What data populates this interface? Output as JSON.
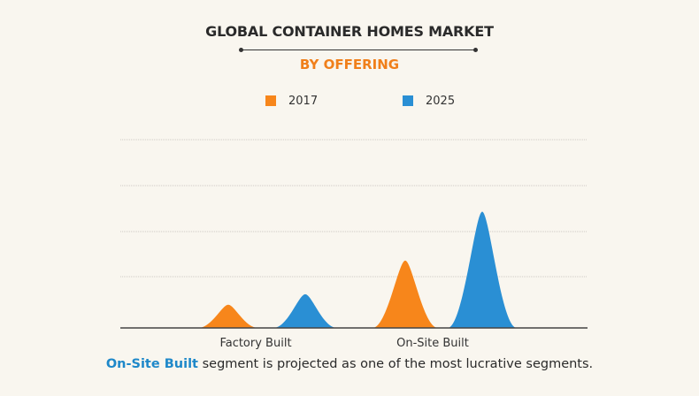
{
  "header": {
    "title": "GLOBAL CONTAINER HOMES MARKET",
    "subtitle": "BY OFFERING"
  },
  "colors": {
    "accent": "#f07f1a",
    "series_2017": "#f7861b",
    "series_2025": "#2a8fd4",
    "highlight": "#1e88c9"
  },
  "chart_data": {
    "type": "area",
    "categories": [
      "Factory Built",
      "On-Site Built"
    ],
    "series": [
      {
        "name": "2017",
        "values": [
          1.0,
          2.9
        ]
      },
      {
        "name": "2025",
        "values": [
          1.45,
          5.0
        ]
      }
    ],
    "ylim": [
      0,
      8.1
    ],
    "grid": true,
    "legend": "top-center"
  },
  "footer": {
    "highlight": "On-Site Built",
    "text": " segment is projected as one of the most lucrative segments."
  }
}
